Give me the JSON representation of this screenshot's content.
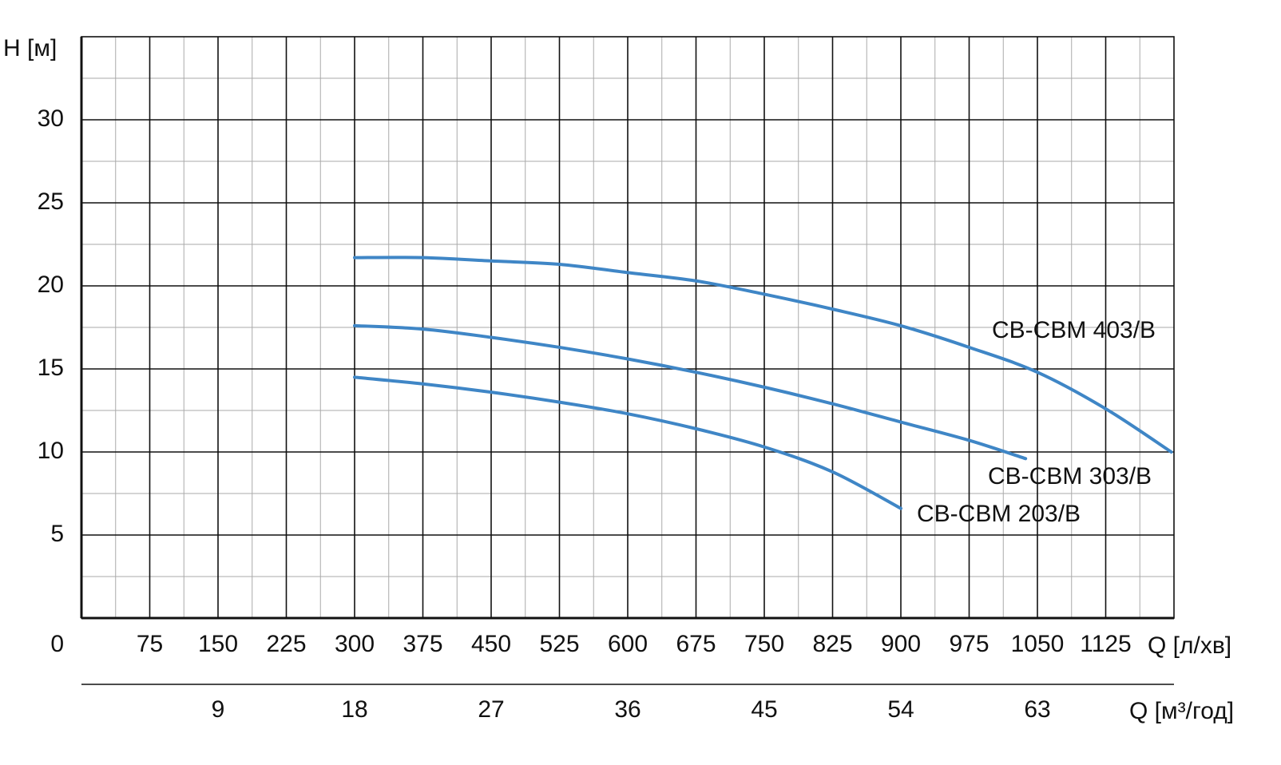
{
  "chart_data": {
    "type": "line",
    "y_label": "H [м]",
    "x_label": "Q [л/хв]",
    "x2_label": "Q [м³/год]",
    "xlim": [
      0,
      1200
    ],
    "xticks": [
      0,
      75,
      150,
      225,
      300,
      375,
      450,
      525,
      600,
      675,
      750,
      825,
      900,
      975,
      1050,
      1125
    ],
    "x2lim": [
      0,
      72
    ],
    "x2ticks": [
      9,
      18,
      27,
      36,
      45,
      54,
      63
    ],
    "ylim": [
      0,
      35
    ],
    "yticks": [
      5,
      10,
      15,
      20,
      25,
      30
    ],
    "grid": true,
    "series": [
      {
        "name": "CB-CBM 403/B",
        "color": "#3f86c6",
        "x": [
          300,
          375,
          450,
          525,
          600,
          675,
          750,
          825,
          900,
          975,
          1050,
          1125,
          1197
        ],
        "values": [
          21.7,
          21.7,
          21.5,
          21.3,
          20.8,
          20.3,
          19.5,
          18.6,
          17.6,
          16.3,
          14.8,
          12.6,
          10
        ]
      },
      {
        "name": "CB-CBM 303/B",
        "color": "#3f86c6",
        "x": [
          300,
          375,
          450,
          525,
          600,
          675,
          750,
          825,
          900,
          975,
          1037
        ],
        "values": [
          17.6,
          17.4,
          16.9,
          16.3,
          15.6,
          14.8,
          13.9,
          12.9,
          11.8,
          10.7,
          9.6
        ]
      },
      {
        "name": "CB-CBM 203/B",
        "color": "#3f86c6",
        "x": [
          300,
          375,
          450,
          525,
          600,
          675,
          750,
          825,
          900
        ],
        "values": [
          14.5,
          14.1,
          13.6,
          13.0,
          12.3,
          11.4,
          10.3,
          8.8,
          6.6
        ]
      }
    ]
  }
}
